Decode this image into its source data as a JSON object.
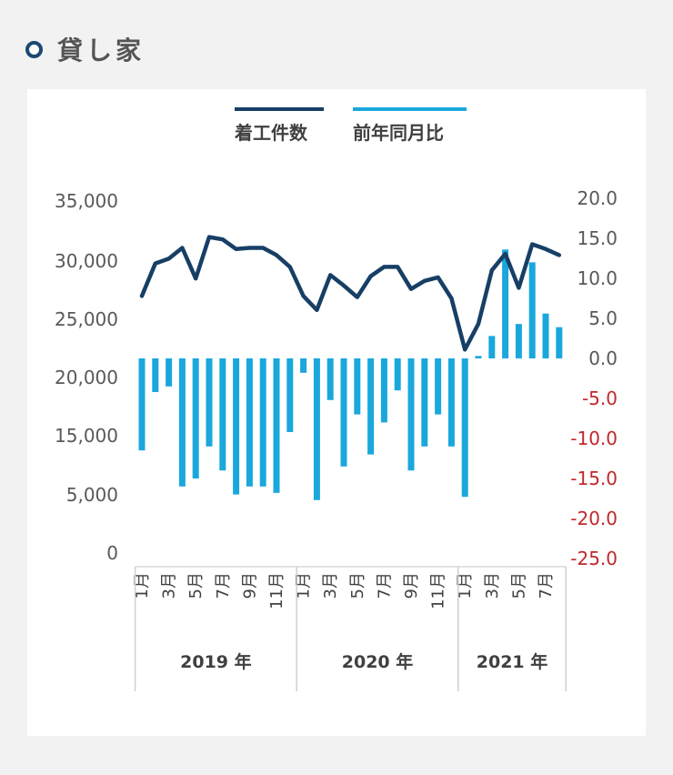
{
  "section": {
    "title": "貸し家"
  },
  "colors": {
    "line": "#173f66",
    "bar": "#1aa7dc",
    "negative_tick": "#c0282d",
    "title_dot": "#1a4a73"
  },
  "chart_data": {
    "type": "bar+line",
    "legend": [
      {
        "label": "着工件数",
        "type": "line",
        "color": "#173f66"
      },
      {
        "label": "前年同月比",
        "type": "bar",
        "color": "#1aa7dc"
      }
    ],
    "legend_position": "top",
    "left_axis": {
      "ticks": [
        "35,000",
        "30,000",
        "25,000",
        "20,000",
        "15,000",
        "5,000",
        "0"
      ],
      "values": [
        35000,
        30000,
        25000,
        20000,
        15000,
        5000,
        0
      ]
    },
    "right_axis": {
      "ticks": [
        "20.0",
        "15.0",
        "10.0",
        "5.0",
        "0.0",
        "-5.0",
        "-10.0",
        "-15.0",
        "-20.0",
        "-25.0"
      ],
      "ylim": [
        -25,
        20
      ]
    },
    "month_labels": [
      "1月",
      "",
      "3月",
      "",
      "5月",
      "",
      "7月",
      "",
      "9月",
      "",
      "11月",
      "",
      "1月",
      "",
      "3月",
      "",
      "5月",
      "",
      "7月",
      "",
      "9月",
      "",
      "11月",
      "",
      "1月",
      "",
      "3月",
      "",
      "5月",
      "",
      "7月",
      ""
    ],
    "years": [
      {
        "label": "2019 年",
        "months": 12
      },
      {
        "label": "2020 年",
        "months": 12
      },
      {
        "label": "2021 年",
        "months": 8
      }
    ],
    "series": [
      {
        "name": "着工件数",
        "type": "line",
        "axis": "left",
        "values": [
          27000,
          29800,
          30200,
          31100,
          28500,
          32000,
          31800,
          31000,
          31100,
          31100,
          30500,
          29500,
          27000,
          25800,
          28800,
          27900,
          26900,
          28700,
          29500,
          29500,
          27600,
          28300,
          28600,
          26800,
          22400,
          24600,
          29200,
          30600,
          27700,
          31400,
          31000,
          30500
        ]
      },
      {
        "name": "前年同月比",
        "type": "bar",
        "axis": "right",
        "values": [
          -11.5,
          -4.2,
          -3.5,
          -16.0,
          -15.0,
          -11.0,
          -14.0,
          -17.0,
          -16.0,
          -16.0,
          -16.8,
          -9.2,
          -1.8,
          -17.7,
          -5.2,
          -13.5,
          -7.0,
          -12.0,
          -8.0,
          -4.0,
          -14.0,
          -11.0,
          -7.0,
          -11.0,
          -17.3,
          0.3,
          2.8,
          13.6,
          4.3,
          12.0,
          5.6,
          3.9
        ]
      }
    ]
  }
}
